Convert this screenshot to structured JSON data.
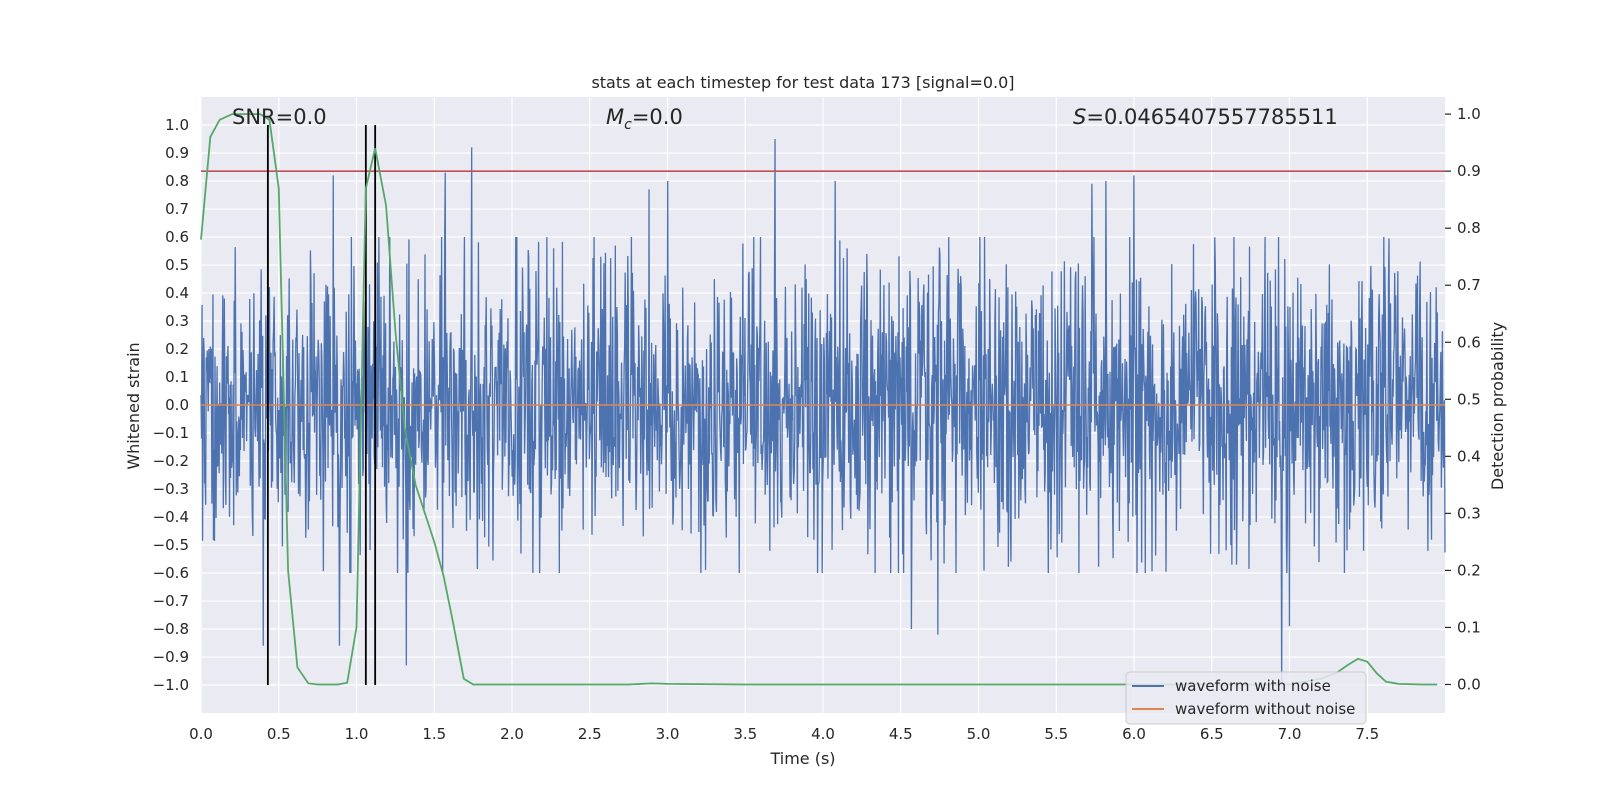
{
  "chart_data": {
    "type": "line",
    "title": "stats at each timestep for test data 173 [signal=0.0]",
    "xlabel": "Time (s)",
    "ylabel": "Whitened strain",
    "ylabel_right": "Detection probability",
    "xlim": [
      0,
      8.0
    ],
    "ylim": [
      -1.1,
      1.1
    ],
    "ylim_right": [
      -0.05,
      1.03
    ],
    "x_ticks": [
      0.0,
      0.5,
      1.0,
      1.5,
      2.0,
      2.5,
      3.0,
      3.5,
      4.0,
      4.5,
      5.0,
      5.5,
      6.0,
      6.5,
      7.0,
      7.5
    ],
    "x_tick_labels": [
      "0.0",
      "0.5",
      "1.0",
      "1.5",
      "2.0",
      "2.5",
      "3.0",
      "3.5",
      "4.0",
      "4.5",
      "5.0",
      "5.5",
      "6.0",
      "6.5",
      "7.0",
      "7.5"
    ],
    "y_ticks": [
      1.0,
      0.9,
      0.8,
      0.7,
      0.6,
      0.5,
      0.4,
      0.3,
      0.2,
      0.1,
      0.0,
      -0.1,
      -0.2,
      -0.3,
      -0.4,
      -0.5,
      -0.6,
      -0.7,
      -0.8,
      -0.9,
      -1.0
    ],
    "y_tick_labels": [
      "1.0",
      "0.9",
      "0.8",
      "0.7",
      "0.6",
      "0.5",
      "0.4",
      "0.3",
      "0.2",
      "0.1",
      "0.0",
      "−0.1",
      "−0.2",
      "−0.3",
      "−0.4",
      "−0.5",
      "−0.6",
      "−0.7",
      "−0.8",
      "−0.9",
      "−1.0"
    ],
    "y_right_ticks": [
      1.0,
      0.9,
      0.8,
      0.7,
      0.6,
      0.5,
      0.4,
      0.3,
      0.2,
      0.1,
      0.0
    ],
    "y_right_tick_labels": [
      "1.0",
      "0.9",
      "0.8",
      "0.7",
      "0.6",
      "0.5",
      "0.4",
      "0.3",
      "0.2",
      "0.1",
      "0.0"
    ],
    "annotations": {
      "snr": "SNR=0.0",
      "mc_symbol": "M",
      "mc_subscript": "c",
      "mc_value": "=0.0",
      "s_symbol": "S",
      "s_value": "=0.0465407557785511"
    },
    "series": [
      {
        "name": "waveform with noise",
        "color": "#4c72b0",
        "style": "dense noise, |strain| mostly within 0.5, peaks up to about 0.95 and down to about -1.0",
        "peaks_x": [
          0.43,
          0.85,
          1.57,
          1.74,
          2.88,
          3.0,
          3.69,
          4.08,
          5.73,
          5.82,
          6.0
        ],
        "peaks_y": [
          0.93,
          0.82,
          0.83,
          0.92,
          0.77,
          0.8,
          0.95,
          0.8,
          0.79,
          0.8,
          0.82
        ],
        "troughs_x": [
          0.4,
          0.89,
          1.32,
          4.57,
          4.74,
          6.95,
          7.0
        ],
        "troughs_y": [
          -0.86,
          -0.86,
          -0.93,
          -0.8,
          -0.82,
          -1.0,
          -0.79
        ]
      },
      {
        "name": "waveform without noise",
        "color": "#dd8452",
        "x": [
          0.0,
          8.0
        ],
        "y": [
          0.0,
          0.0
        ]
      },
      {
        "name": "detection probability",
        "color": "#55a868",
        "axis": "right",
        "x": [
          0.0,
          0.06,
          0.12,
          0.2,
          0.3,
          0.38,
          0.44,
          0.5,
          0.56,
          0.62,
          0.69,
          0.75,
          0.81,
          0.88,
          0.94,
          1.0,
          1.06,
          1.12,
          1.19,
          1.25,
          1.31,
          1.38,
          1.44,
          1.5,
          1.56,
          1.62,
          1.69,
          1.75,
          1.81,
          2.0,
          2.5,
          2.75,
          2.9,
          3.0,
          3.5,
          4.0,
          5.0,
          6.0,
          7.0,
          7.2,
          7.3,
          7.38,
          7.44,
          7.5,
          7.56,
          7.62,
          7.7,
          7.85,
          7.95
        ],
        "y": [
          0.78,
          0.96,
          0.99,
          1.0,
          1.0,
          1.0,
          0.99,
          0.87,
          0.2,
          0.03,
          0.002,
          0.0,
          0.0,
          0.0,
          0.003,
          0.1,
          0.87,
          0.94,
          0.84,
          0.62,
          0.45,
          0.35,
          0.3,
          0.25,
          0.19,
          0.11,
          0.01,
          0.0,
          0.0,
          0.0,
          0.0,
          0.0,
          0.002,
          0.001,
          0.0,
          0.0,
          0.0,
          0.0,
          0.0,
          0.01,
          0.02,
          0.035,
          0.045,
          0.04,
          0.02,
          0.005,
          0.001,
          0.0,
          0.0
        ]
      },
      {
        "name": "threshold",
        "color": "#c44e52",
        "axis": "right",
        "y": 0.9
      },
      {
        "name": "detection markers",
        "color": "#000000",
        "x": [
          0.43,
          1.06,
          1.12
        ],
        "y_top": 1.0,
        "y_bottom": -1.0
      }
    ],
    "legend": {
      "placement": "lower-right",
      "entries": [
        "waveform with noise",
        "waveform without noise"
      ]
    },
    "grid": true
  },
  "colors": {
    "plot_background": "#eaeaf2",
    "grid": "#ffffff",
    "text": "#262626"
  }
}
